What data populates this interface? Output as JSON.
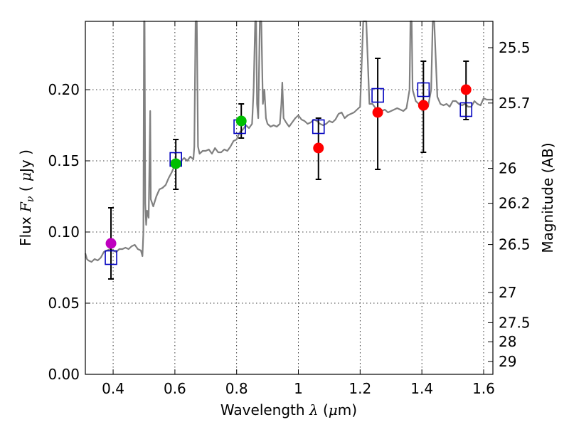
{
  "chart_data": {
    "type": "scatter",
    "xlabel": {
      "prefix": "Wavelength  ",
      "symbol": "λ",
      "suffix": " (",
      "unit_symbol": "μ",
      "unit": "m)"
    },
    "ylabel": {
      "prefix": "Flux  ",
      "symbol": "F",
      "subscript": "ν",
      "suffix": "  ( ",
      "unit_symbol": "μ",
      "unit": "Jy )"
    },
    "y2label": "Magnitude (AB)",
    "xlim": [
      0.31,
      1.63
    ],
    "ylim": [
      0.0,
      0.248
    ],
    "grid": true,
    "x_ticks": [
      {
        "value": 0.4,
        "label": "0.4"
      },
      {
        "value": 0.6,
        "label": "0.6"
      },
      {
        "value": 0.8,
        "label": "0.8"
      },
      {
        "value": 1.0,
        "label": "1"
      },
      {
        "value": 1.2,
        "label": "1.2"
      },
      {
        "value": 1.4,
        "label": "1.4"
      },
      {
        "value": 1.6,
        "label": "1.6"
      }
    ],
    "y_ticks": [
      {
        "value": 0.0,
        "label": "0.00"
      },
      {
        "value": 0.05,
        "label": "0.05"
      },
      {
        "value": 0.1,
        "label": "0.10"
      },
      {
        "value": 0.15,
        "label": "0.15"
      },
      {
        "value": 0.2,
        "label": "0.20"
      }
    ],
    "y2_ticks": [
      {
        "flux": 0.2295,
        "label": "25.5"
      },
      {
        "flux": 0.1906,
        "label": "25.7"
      },
      {
        "flux": 0.1447,
        "label": "26"
      },
      {
        "flux": 0.1202,
        "label": "26.2"
      },
      {
        "flux": 0.0912,
        "label": "26.5"
      },
      {
        "flux": 0.0575,
        "label": "27"
      },
      {
        "flux": 0.0363,
        "label": "27.5"
      },
      {
        "flux": 0.0229,
        "label": "28"
      },
      {
        "flux": 0.0091,
        "label": "29"
      }
    ],
    "model_spectrum": {
      "color": "#808080",
      "points": [
        [
          0.31,
          0.085
        ],
        [
          0.315,
          0.081
        ],
        [
          0.32,
          0.08
        ],
        [
          0.33,
          0.079
        ],
        [
          0.34,
          0.081
        ],
        [
          0.35,
          0.08
        ],
        [
          0.36,
          0.082
        ],
        [
          0.37,
          0.086
        ],
        [
          0.38,
          0.087
        ],
        [
          0.39,
          0.088
        ],
        [
          0.4,
          0.087
        ],
        [
          0.41,
          0.086
        ],
        [
          0.42,
          0.088
        ],
        [
          0.43,
          0.088
        ],
        [
          0.44,
          0.089
        ],
        [
          0.45,
          0.088
        ],
        [
          0.46,
          0.09
        ],
        [
          0.47,
          0.091
        ],
        [
          0.48,
          0.088
        ],
        [
          0.49,
          0.087
        ],
        [
          0.495,
          0.083
        ],
        [
          0.498,
          0.1
        ],
        [
          0.5,
          0.248
        ],
        [
          0.502,
          0.248
        ],
        [
          0.504,
          0.12
        ],
        [
          0.507,
          0.105
        ],
        [
          0.51,
          0.115
        ],
        [
          0.515,
          0.11
        ],
        [
          0.52,
          0.185
        ],
        [
          0.522,
          0.123
        ],
        [
          0.53,
          0.118
        ],
        [
          0.54,
          0.125
        ],
        [
          0.55,
          0.13
        ],
        [
          0.56,
          0.131
        ],
        [
          0.57,
          0.133
        ],
        [
          0.58,
          0.138
        ],
        [
          0.59,
          0.142
        ],
        [
          0.6,
          0.147
        ],
        [
          0.61,
          0.148
        ],
        [
          0.62,
          0.15
        ],
        [
          0.63,
          0.152
        ],
        [
          0.64,
          0.15
        ],
        [
          0.65,
          0.153
        ],
        [
          0.66,
          0.151
        ],
        [
          0.663,
          0.16
        ],
        [
          0.667,
          0.248
        ],
        [
          0.671,
          0.248
        ],
        [
          0.675,
          0.16
        ],
        [
          0.68,
          0.155
        ],
        [
          0.69,
          0.157
        ],
        [
          0.7,
          0.157
        ],
        [
          0.71,
          0.158
        ],
        [
          0.72,
          0.155
        ],
        [
          0.73,
          0.159
        ],
        [
          0.74,
          0.156
        ],
        [
          0.75,
          0.156
        ],
        [
          0.76,
          0.158
        ],
        [
          0.77,
          0.157
        ],
        [
          0.78,
          0.16
        ],
        [
          0.79,
          0.164
        ],
        [
          0.8,
          0.165
        ],
        [
          0.81,
          0.17
        ],
        [
          0.82,
          0.172
        ],
        [
          0.83,
          0.175
        ],
        [
          0.84,
          0.173
        ],
        [
          0.85,
          0.176
        ],
        [
          0.855,
          0.2
        ],
        [
          0.86,
          0.248
        ],
        [
          0.863,
          0.248
        ],
        [
          0.866,
          0.19
        ],
        [
          0.87,
          0.18
        ],
        [
          0.875,
          0.248
        ],
        [
          0.88,
          0.248
        ],
        [
          0.885,
          0.19
        ],
        [
          0.89,
          0.2
        ],
        [
          0.895,
          0.18
        ],
        [
          0.9,
          0.176
        ],
        [
          0.91,
          0.174
        ],
        [
          0.92,
          0.175
        ],
        [
          0.93,
          0.174
        ],
        [
          0.94,
          0.176
        ],
        [
          0.945,
          0.19
        ],
        [
          0.948,
          0.205
        ],
        [
          0.952,
          0.18
        ],
        [
          0.96,
          0.177
        ],
        [
          0.97,
          0.174
        ],
        [
          0.98,
          0.177
        ],
        [
          0.99,
          0.18
        ],
        [
          1.0,
          0.182
        ],
        [
          1.01,
          0.179
        ],
        [
          1.02,
          0.178
        ],
        [
          1.03,
          0.176
        ],
        [
          1.04,
          0.177
        ],
        [
          1.05,
          0.179
        ],
        [
          1.06,
          0.178
        ],
        [
          1.07,
          0.176
        ],
        [
          1.08,
          0.175
        ],
        [
          1.09,
          0.176
        ],
        [
          1.1,
          0.178
        ],
        [
          1.11,
          0.177
        ],
        [
          1.12,
          0.179
        ],
        [
          1.13,
          0.183
        ],
        [
          1.14,
          0.184
        ],
        [
          1.15,
          0.18
        ],
        [
          1.16,
          0.182
        ],
        [
          1.17,
          0.183
        ],
        [
          1.18,
          0.184
        ],
        [
          1.19,
          0.186
        ],
        [
          1.2,
          0.188
        ],
        [
          1.21,
          0.248
        ],
        [
          1.22,
          0.248
        ],
        [
          1.23,
          0.19
        ],
        [
          1.24,
          0.19
        ],
        [
          1.25,
          0.187
        ],
        [
          1.26,
          0.186
        ],
        [
          1.27,
          0.185
        ],
        [
          1.28,
          0.186
        ],
        [
          1.29,
          0.184
        ],
        [
          1.3,
          0.185
        ],
        [
          1.31,
          0.186
        ],
        [
          1.32,
          0.187
        ],
        [
          1.33,
          0.186
        ],
        [
          1.34,
          0.185
        ],
        [
          1.35,
          0.187
        ],
        [
          1.36,
          0.2
        ],
        [
          1.363,
          0.248
        ],
        [
          1.367,
          0.248
        ],
        [
          1.37,
          0.2
        ],
        [
          1.38,
          0.192
        ],
        [
          1.39,
          0.19
        ],
        [
          1.4,
          0.19
        ],
        [
          1.41,
          0.19
        ],
        [
          1.42,
          0.188
        ],
        [
          1.43,
          0.2
        ],
        [
          1.435,
          0.248
        ],
        [
          1.44,
          0.248
        ],
        [
          1.45,
          0.195
        ],
        [
          1.46,
          0.19
        ],
        [
          1.47,
          0.189
        ],
        [
          1.48,
          0.19
        ],
        [
          1.49,
          0.188
        ],
        [
          1.5,
          0.192
        ],
        [
          1.51,
          0.192
        ],
        [
          1.52,
          0.19
        ],
        [
          1.53,
          0.189
        ],
        [
          1.54,
          0.19
        ],
        [
          1.55,
          0.188
        ],
        [
          1.56,
          0.188
        ],
        [
          1.57,
          0.192
        ],
        [
          1.58,
          0.19
        ],
        [
          1.59,
          0.189
        ],
        [
          1.6,
          0.194
        ],
        [
          1.61,
          0.193
        ],
        [
          1.62,
          0.193
        ],
        [
          1.63,
          0.193
        ]
      ]
    },
    "observed": [
      {
        "x": 0.393,
        "y": 0.092,
        "color": "#bf00bf",
        "err": [
          0.067,
          0.117
        ]
      },
      {
        "x": 0.603,
        "y": 0.148,
        "color": "#00bf00",
        "err": [
          0.13,
          0.165
        ]
      },
      {
        "x": 0.815,
        "y": 0.178,
        "color": "#00bf00",
        "err": [
          0.166,
          0.19
        ]
      },
      {
        "x": 1.065,
        "y": 0.159,
        "color": "#ff0000",
        "err": [
          0.137,
          0.18
        ]
      },
      {
        "x": 1.257,
        "y": 0.184,
        "color": "#ff0000",
        "err": [
          0.144,
          0.222
        ]
      },
      {
        "x": 1.405,
        "y": 0.189,
        "color": "#ff0000",
        "err": [
          0.156,
          0.22
        ]
      },
      {
        "x": 1.543,
        "y": 0.2,
        "color": "#ff0000",
        "err": [
          0.179,
          0.22
        ]
      }
    ],
    "model_photometry": {
      "color": "#0000bf",
      "points": [
        {
          "x": 0.393,
          "y": 0.082
        },
        {
          "x": 0.603,
          "y": 0.151
        },
        {
          "x": 0.81,
          "y": 0.174
        },
        {
          "x": 1.065,
          "y": 0.174
        },
        {
          "x": 1.257,
          "y": 0.196
        },
        {
          "x": 1.405,
          "y": 0.2
        },
        {
          "x": 1.543,
          "y": 0.186
        }
      ]
    }
  }
}
